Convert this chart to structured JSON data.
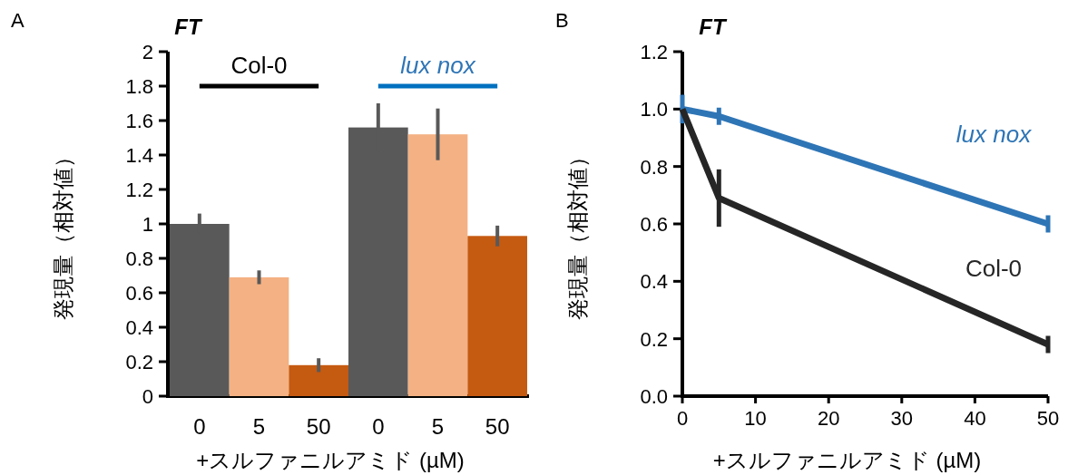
{
  "chart_data": [
    {
      "type": "bar",
      "title": "FT",
      "xlabel": "+スルファニルアミド (µM)",
      "ylabel": "発現量（相対値）",
      "annotations": [
        "A",
        "Col-0",
        "lux nox"
      ],
      "categories": [
        "0",
        "5",
        "50",
        "0",
        "5",
        "50"
      ],
      "values": [
        1.0,
        0.69,
        0.18,
        1.56,
        1.52,
        0.93
      ],
      "colors": [
        "#595959",
        "#f4b183",
        "#c55a11",
        "#595959",
        "#f4b183",
        "#c55a11"
      ],
      "errors": [
        0.06,
        0.04,
        0.04,
        0.14,
        0.15,
        0.06
      ],
      "ylim": [
        0,
        2
      ],
      "yticks": [
        0,
        0.2,
        0.4,
        0.6,
        0.8,
        1,
        1.2,
        1.4,
        1.6,
        1.8,
        2
      ],
      "grid": false
    },
    {
      "type": "line",
      "title": "FT",
      "xlabel": "+スルファニルアミド (µM)",
      "ylabel": "発現量（相対値）",
      "annotations": [
        "B"
      ],
      "x": [
        0,
        5,
        50
      ],
      "series": [
        {
          "name": "lux nox",
          "color": "#2e75b6",
          "values": [
            1.0,
            0.975,
            0.6
          ],
          "errors": [
            0.05,
            0.03,
            0.03
          ]
        },
        {
          "name": "Col-0",
          "color": "#262626",
          "values": [
            1.0,
            0.69,
            0.18
          ],
          "errors": [
            null,
            0.1,
            0.03
          ]
        }
      ],
      "xlim": [
        0,
        50
      ],
      "xticks": [
        0,
        10,
        20,
        30,
        40,
        50
      ],
      "ylim": [
        0,
        1.2
      ],
      "yticks": [
        {
          "value": 0,
          "label": "0.0"
        },
        {
          "value": 0.2,
          "label": "0.2"
        },
        {
          "value": 0.4,
          "label": "0.4"
        },
        {
          "value": 0.6,
          "label": "0.6"
        },
        {
          "value": 0.8,
          "label": "0.8"
        },
        {
          "value": 1,
          "label": "1.0"
        },
        {
          "value": 1.2,
          "label": "1.2"
        }
      ],
      "grid": false
    }
  ]
}
